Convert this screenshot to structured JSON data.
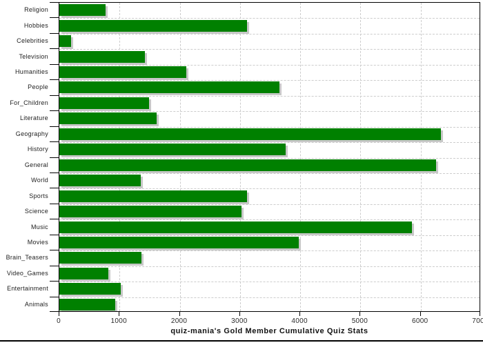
{
  "chart_data": {
    "type": "bar",
    "orientation": "horizontal",
    "title": "quiz-mania's Gold Member Cumulative Quiz Stats",
    "categories": [
      "Religion",
      "Hobbies",
      "Celebrities",
      "Television",
      "Humanities",
      "People",
      "For_Children",
      "Literature",
      "Geography",
      "History",
      "General",
      "World",
      "Sports",
      "Science",
      "Music",
      "Movies",
      "Brain_Teasers",
      "Video_Games",
      "Entertainment",
      "Animals"
    ],
    "values": [
      770,
      3120,
      190,
      1420,
      2110,
      3660,
      1490,
      1610,
      6330,
      3760,
      6250,
      1350,
      3120,
      3030,
      5860,
      3980,
      1360,
      810,
      1020,
      930
    ],
    "xlabel": "",
    "ylabel": "",
    "xlim": [
      0,
      7000
    ],
    "x_ticks": [
      0,
      1000,
      2000,
      3000,
      4000,
      5000,
      6000,
      7000
    ],
    "grid": "dashed-vertical-and-row-separators",
    "legend": "none",
    "colors": {
      "bar": "#008000",
      "bar_shadow": "#c8c8c8",
      "gridline": "#cccccc",
      "axis": "#000000",
      "label": "#1d1d1d",
      "title": "#111111",
      "background": "#ffffff"
    }
  }
}
